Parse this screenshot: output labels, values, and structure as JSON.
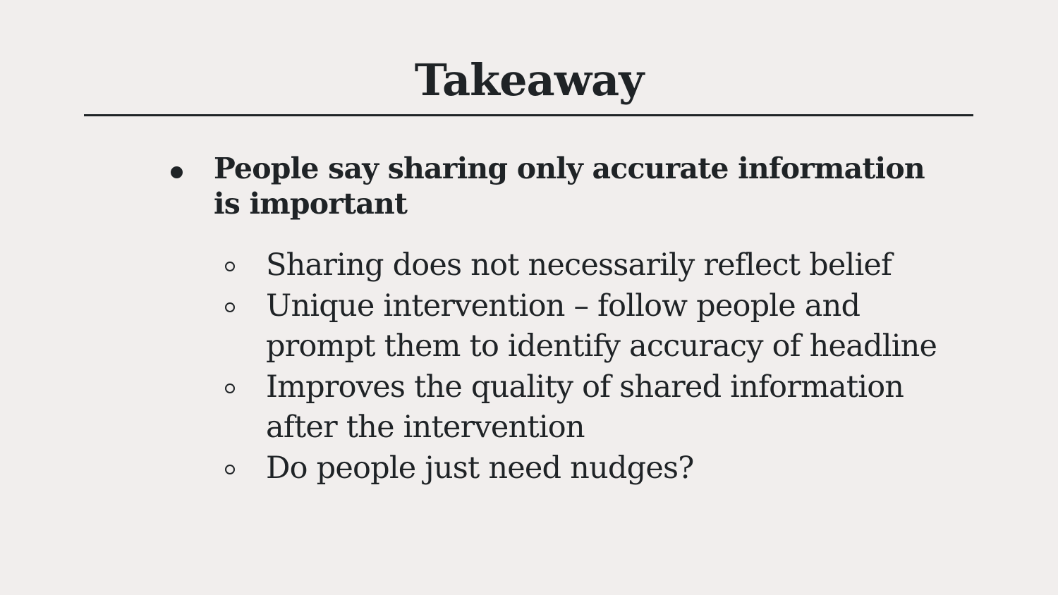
{
  "slide": {
    "title": "Takeaway",
    "main_bullet": "People say sharing only accurate information is important",
    "sub_bullets": [
      "Sharing does not necessarily reflect belief",
      "Unique intervention – follow people and prompt them to identify accuracy of headline",
      "Improves the quality of shared information after the intervention",
      "Do people just need nudges?"
    ]
  },
  "icons": {
    "main_bullet": "filled-circle-bullet-icon",
    "sub_bullet": "hollow-circle-bullet-icon"
  },
  "colors": {
    "background": "#f1eeed",
    "text": "#1f2326"
  }
}
